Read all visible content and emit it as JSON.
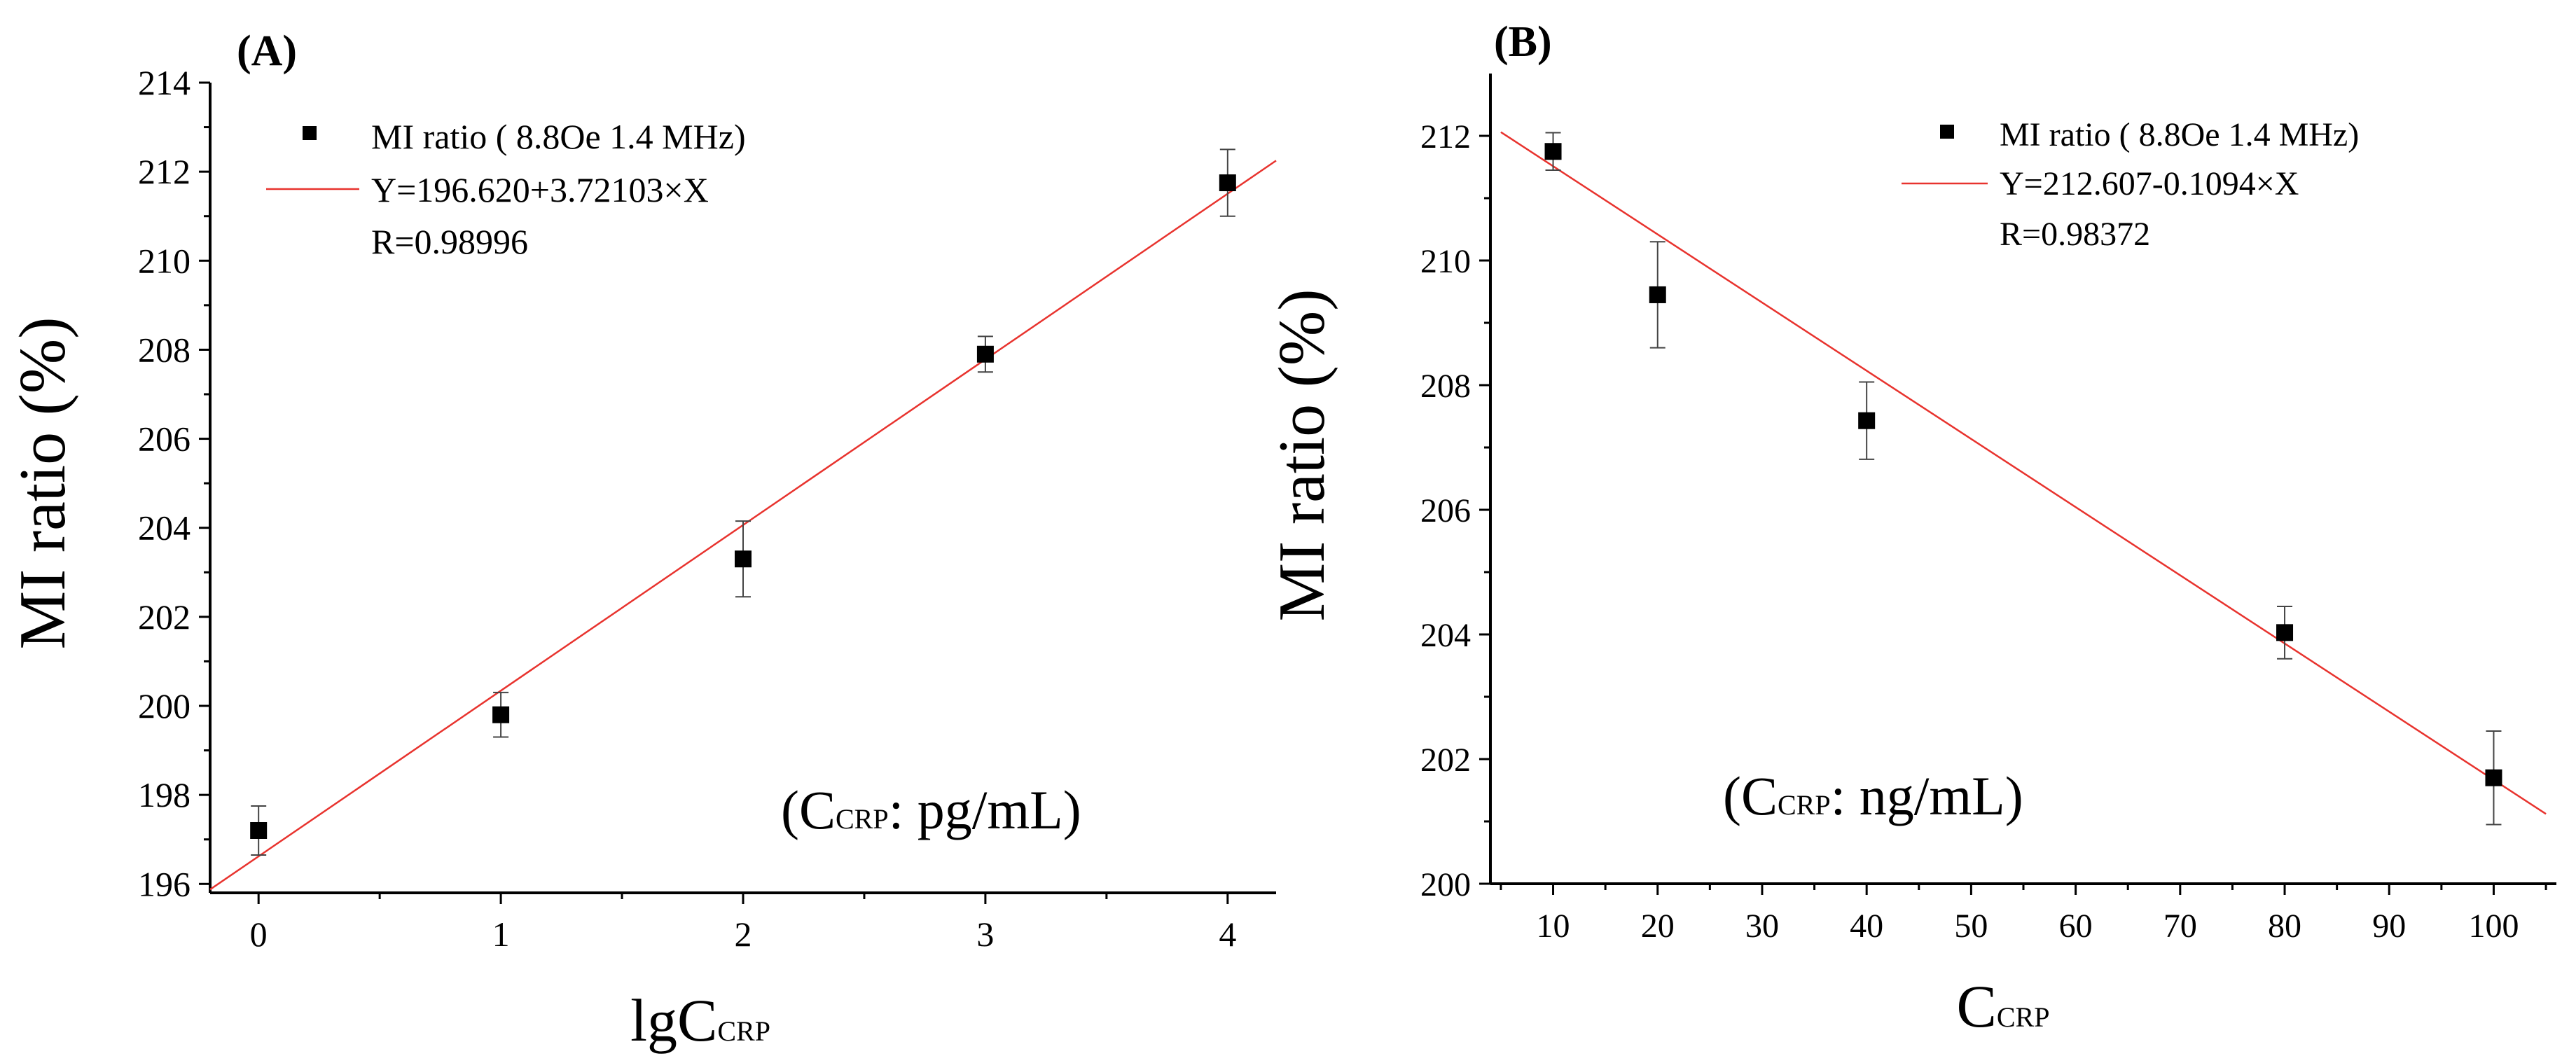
{
  "chart_data": [
    {
      "type": "scatter",
      "panel_label": "(A)",
      "xlabel_main": "lgC",
      "xlabel_sub": "CRP",
      "ylabel": "MI ratio (%)",
      "xlim": [
        -0.2,
        4.2
      ],
      "ylim": [
        195.8,
        214
      ],
      "xticks": [
        0,
        1,
        2,
        3,
        4
      ],
      "yticks": [
        196,
        198,
        200,
        202,
        204,
        206,
        208,
        210,
        212,
        214
      ],
      "series": [
        {
          "name": "MI ratio ( 8.8Oe 1.4 MHz)",
          "marker": "square",
          "color": "#000000",
          "points": [
            {
              "x": 0,
              "y": 197.2,
              "err": 0.55
            },
            {
              "x": 1,
              "y": 199.8,
              "err": 0.5
            },
            {
              "x": 2,
              "y": 203.3,
              "err": 0.85
            },
            {
              "x": 3,
              "y": 207.9,
              "err": 0.4
            },
            {
              "x": 4,
              "y": 211.75,
              "err": 0.75
            }
          ]
        }
      ],
      "fit": {
        "intercept": 196.62,
        "slope": 3.72103,
        "x_range": [
          -0.2,
          4.2
        ],
        "color": "#e8332e"
      },
      "legend": {
        "marker_label": "MI ratio ( 8.8Oe 1.4 MHz)",
        "line_label": "Y=196.620+3.72103×X",
        "r_label": "R=0.98996",
        "position": "top-left"
      },
      "annotation": {
        "open": "(C",
        "sub": "CRP",
        "rest": ": pg/mL)"
      }
    },
    {
      "type": "scatter",
      "panel_label": "(B)",
      "xlabel_main": "C",
      "xlabel_sub": "CRP",
      "ylabel": "MI ratio (%)",
      "xlim": [
        4,
        106
      ],
      "ylim": [
        200,
        213
      ],
      "xticks": [
        10,
        20,
        30,
        40,
        50,
        60,
        70,
        80,
        90,
        100
      ],
      "yticks": [
        200,
        202,
        204,
        206,
        208,
        210,
        212
      ],
      "series": [
        {
          "name": "MI ratio ( 8.8Oe 1.4 MHz)",
          "marker": "square",
          "color": "#000000",
          "points": [
            {
              "x": 10,
              "y": 211.75,
              "err": 0.3
            },
            {
              "x": 20,
              "y": 209.45,
              "err": 0.85
            },
            {
              "x": 40,
              "y": 207.43,
              "err": 0.62
            },
            {
              "x": 80,
              "y": 204.03,
              "err": 0.42
            },
            {
              "x": 100,
              "y": 201.7,
              "err": 0.75
            }
          ]
        }
      ],
      "fit": {
        "intercept": 212.607,
        "slope": -0.1094,
        "x_range": [
          5,
          105
        ],
        "color": "#e8332e"
      },
      "legend": {
        "marker_label": "MI ratio ( 8.8Oe 1.4 MHz)",
        "line_label": "Y=212.607-0.1094×X",
        "r_label": "R=0.98372",
        "position": "top-right"
      },
      "annotation": {
        "open": "(C",
        "sub": "CRP",
        "rest": ": ng/mL)"
      }
    }
  ]
}
